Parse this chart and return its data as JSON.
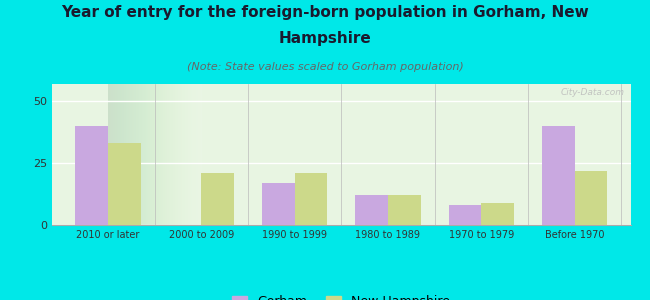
{
  "title_line1": "Year of entry for the foreign-born population in Gorham, New",
  "title_line2": "Hampshire",
  "subtitle": "(Note: State values scaled to Gorham population)",
  "categories": [
    "2010 or later",
    "2000 to 2009",
    "1990 to 1999",
    "1980 to 1989",
    "1970 to 1979",
    "Before 1970"
  ],
  "gorham_values": [
    40,
    0,
    17,
    12,
    8,
    40
  ],
  "nh_values": [
    33,
    21,
    21,
    12,
    9,
    22
  ],
  "gorham_color": "#c9a8e0",
  "nh_color": "#ccd98a",
  "background_color": "#00e8e8",
  "plot_bg_color": "#e8f5e2",
  "ylim": [
    0,
    57
  ],
  "yticks": [
    0,
    25,
    50
  ],
  "legend_gorham": "Gorham",
  "legend_nh": "New Hampshire",
  "bar_width": 0.35,
  "title_fontsize": 11,
  "subtitle_fontsize": 8,
  "watermark": "City-Data.com",
  "title_color": "#1a1a2e"
}
